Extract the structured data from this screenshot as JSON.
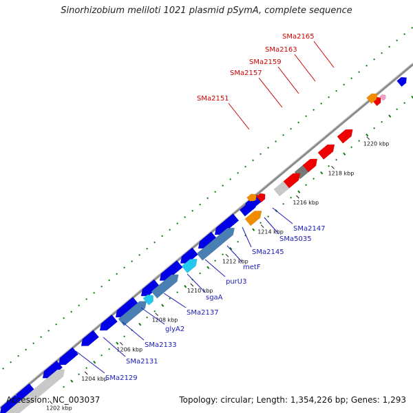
{
  "title": "Sinorhizobium meliloti 1021 plasmid pSymA, complete sequence",
  "footer": {
    "accession": "Accession: NC_003037",
    "summary": "Topology: circular; Length: 1,354,226 bp; Genes: 1,293"
  },
  "ticks": [
    {
      "label": "1202 kbp",
      "pos": 1202
    },
    {
      "label": "1204 kbp",
      "pos": 1204
    },
    {
      "label": "1206 kbp",
      "pos": 1206
    },
    {
      "label": "1208 kbp",
      "pos": 1208
    },
    {
      "label": "1210 kbp",
      "pos": 1210
    },
    {
      "label": "1212 kbp",
      "pos": 1212
    },
    {
      "label": "1214 kbp",
      "pos": 1214
    },
    {
      "label": "1216 kbp",
      "pos": 1216
    },
    {
      "label": "1218 kbp",
      "pos": 1218
    },
    {
      "label": "1220 kbp",
      "pos": 1220
    }
  ],
  "gene_labels_top": [
    "SMa2151",
    "SMa2157",
    "SMa2159",
    "SMa2163",
    "SMa2165"
  ],
  "gene_labels_bottom": [
    "SMa2129",
    "SMa2131",
    "SMa2133",
    "glyA2",
    "SMa2137",
    "sgaA",
    "purU3",
    "metF",
    "SMa2145",
    "SMa5035",
    "SMa2147"
  ],
  "colors": {
    "cds_blue": "#0000e6",
    "cds_steel": "#4a7fb3",
    "cds_cyan": "#22c8f0",
    "cds_gray": "#c8c8c8",
    "cds_red": "#ee0000",
    "cds_orange": "#f08c00",
    "cds_pink": "#f0a0c8",
    "backbone": "#888888",
    "gc_green": "#0a7a0a"
  }
}
